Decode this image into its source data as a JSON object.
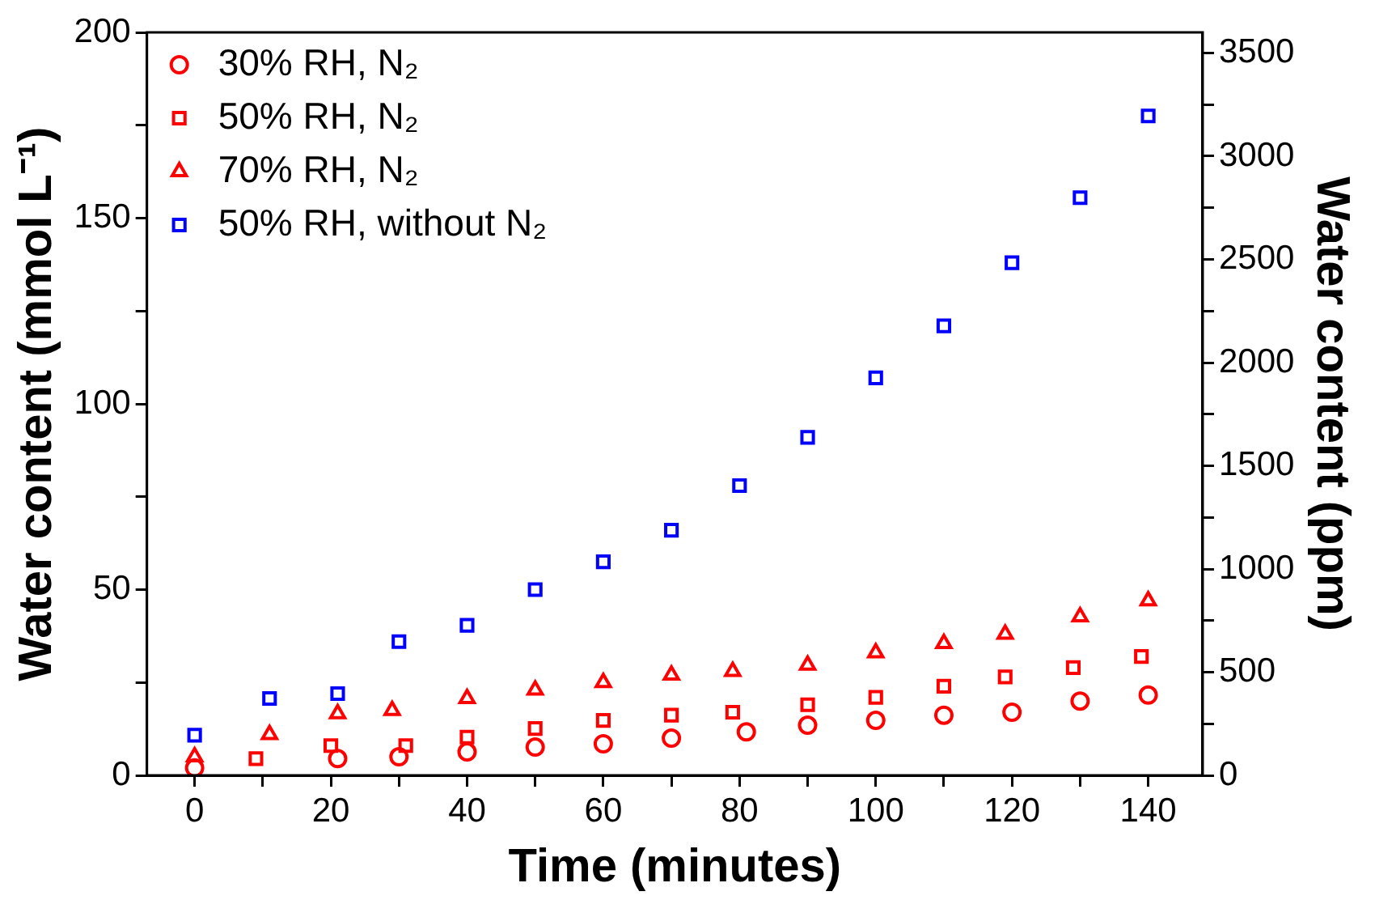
{
  "chart_data": {
    "type": "scatter",
    "xlabel": "Time (minutes)",
    "ylabel": "Water content (mmol L⁻¹)",
    "y2label": "Water content (ppm)",
    "xlim": [
      -7,
      148
    ],
    "xticks": [
      0,
      {
        "value": 10,
        "label": null
      },
      20,
      {
        "value": 30,
        "label": null
      },
      40,
      {
        "value": 50,
        "label": null
      },
      60,
      {
        "value": 70,
        "label": null
      },
      80,
      {
        "value": 90,
        "label": null
      },
      100,
      {
        "value": 110,
        "label": null
      },
      120,
      {
        "value": 130,
        "label": null
      },
      140
    ],
    "ylim": [
      0,
      200
    ],
    "yticks": [
      0,
      {
        "value": 25,
        "label": null
      },
      50,
      {
        "value": 75,
        "label": null
      },
      100,
      {
        "value": 125,
        "label": null
      },
      150,
      {
        "value": 175,
        "label": null
      },
      200
    ],
    "y2lim": [
      0,
      3600
    ],
    "y2ticks": [
      0,
      {
        "value": 250,
        "label": null
      },
      500,
      {
        "value": 750,
        "label": null
      },
      1000,
      {
        "value": 1250,
        "label": null
      },
      1500,
      {
        "value": 1750,
        "label": null
      },
      2000,
      {
        "value": 2250,
        "label": null
      },
      2500,
      {
        "value": 2750,
        "label": null
      },
      3000,
      {
        "value": 3250,
        "label": null
      },
      3500
    ],
    "grid": false,
    "legend": "top left",
    "series": [
      {
        "name": "30% RH, N₂",
        "color": "#ff0000",
        "marker": "circle",
        "x": [
          0,
          21,
          30,
          40,
          50,
          60,
          70,
          81,
          90,
          100,
          110,
          120,
          130,
          140
        ],
        "values": [
          2,
          4.5,
          5,
          6.3,
          7.6,
          8.5,
          10,
          11.7,
          13.5,
          14.8,
          16.2,
          17,
          20,
          21.6
        ]
      },
      {
        "name": "50% RH, N₂",
        "color": "#ff0000",
        "marker": "square",
        "x": [
          9,
          20,
          31,
          40,
          50,
          60,
          70,
          79,
          90,
          100,
          110,
          119,
          129,
          139
        ],
        "values": [
          4.5,
          8,
          8,
          10.3,
          12.6,
          14.8,
          16.2,
          17,
          19,
          21,
          24,
          26.5,
          29,
          32
        ]
      },
      {
        "name": "70% RH, N₂",
        "color": "#ff0000",
        "marker": "triangle",
        "x": [
          0,
          11,
          21,
          29,
          40,
          50,
          60,
          70,
          79,
          90,
          100,
          110,
          119,
          130,
          140
        ],
        "values": [
          5,
          11,
          16.6,
          17.5,
          20.7,
          23,
          25,
          27,
          28,
          29.7,
          33,
          35.5,
          38,
          42.7,
          47
        ]
      },
      {
        "name": "50% RH, without N₂",
        "color": "#0000ff",
        "marker": "square",
        "x": [
          0,
          11,
          21,
          30,
          40,
          50,
          60,
          70,
          80,
          90,
          100,
          110,
          120,
          130,
          140
        ],
        "values": [
          10.8,
          20.7,
          22,
          36,
          40.4,
          50,
          57.5,
          66,
          78,
          91,
          107,
          121,
          138,
          155.5,
          177.5
        ]
      }
    ]
  }
}
